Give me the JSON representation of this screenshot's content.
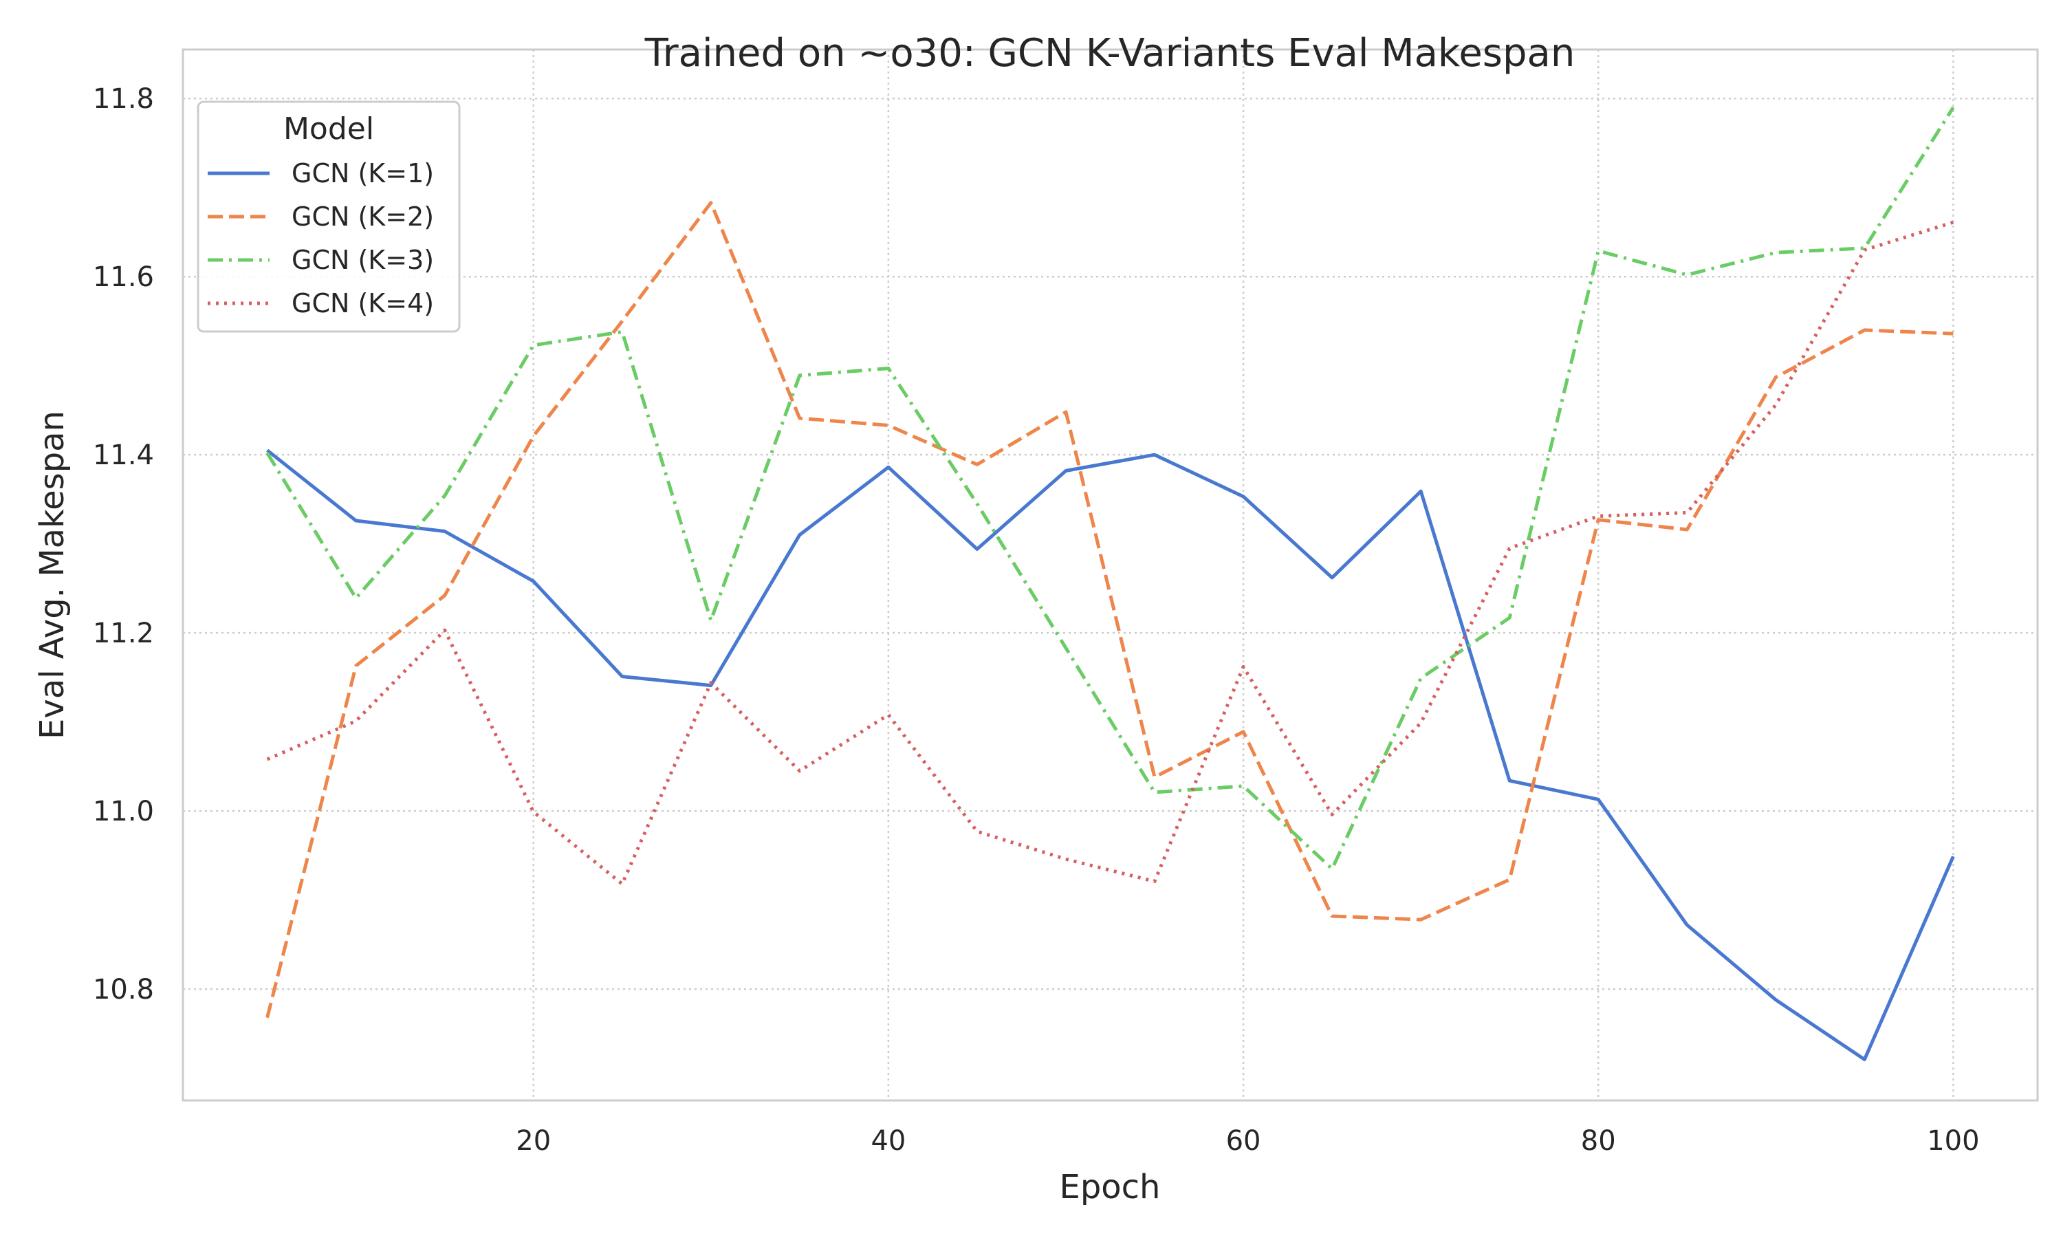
{
  "chart_data": {
    "type": "line",
    "title": "Trained on ~o30: GCN K-Variants Eval Makespan",
    "xlabel": "Epoch",
    "ylabel": "Eval Avg. Makespan",
    "xlim": [
      0.25,
      104.75
    ],
    "ylim": [
      10.675,
      11.855
    ],
    "xticks": [
      20,
      40,
      60,
      80,
      100
    ],
    "yticks": [
      10.8,
      11.0,
      11.2,
      11.4,
      11.6,
      11.8
    ],
    "ytick_labels": [
      "10.8",
      "11.0",
      "11.2",
      "11.4",
      "11.6",
      "11.8"
    ],
    "grid": true,
    "legend": {
      "title": "Model",
      "position": "top-left"
    },
    "x": [
      5,
      10,
      15,
      20,
      25,
      30,
      35,
      40,
      45,
      50,
      55,
      60,
      65,
      70,
      75,
      80,
      85,
      90,
      95,
      100
    ],
    "series": [
      {
        "name": "GCN (K=1)",
        "color": "#4878d0",
        "dash": "solid",
        "values": [
          11.405,
          11.326,
          11.314,
          11.258,
          11.151,
          11.141,
          11.31,
          11.386,
          11.294,
          11.382,
          11.4,
          11.353,
          11.262,
          11.359,
          11.034,
          11.013,
          10.872,
          10.788,
          10.721,
          10.949
        ]
      },
      {
        "name": "GCN (K=2)",
        "color": "#ee854a",
        "dash": "dashed",
        "values": [
          10.768,
          11.163,
          11.242,
          11.421,
          11.55,
          11.683,
          11.441,
          11.433,
          11.389,
          11.448,
          11.038,
          11.089,
          10.882,
          10.878,
          10.923,
          11.327,
          11.316,
          11.487,
          11.54,
          11.536
        ]
      },
      {
        "name": "GCN (K=3)",
        "color": "#6acc64",
        "dash": "dashdot",
        "values": [
          11.402,
          11.239,
          11.354,
          11.523,
          11.538,
          11.214,
          11.489,
          11.497,
          11.345,
          11.183,
          11.021,
          11.028,
          10.935,
          11.149,
          11.217,
          11.629,
          11.602,
          11.627,
          11.632,
          11.79
        ]
      },
      {
        "name": "GCN (K=4)",
        "color": "#d65f5f",
        "dash": "dotted",
        "values": [
          11.058,
          11.101,
          11.203,
          10.999,
          10.918,
          11.144,
          11.045,
          11.108,
          10.977,
          10.946,
          10.921,
          11.162,
          10.996,
          11.099,
          11.295,
          11.331,
          11.335,
          11.456,
          11.63,
          11.661
        ]
      }
    ]
  }
}
